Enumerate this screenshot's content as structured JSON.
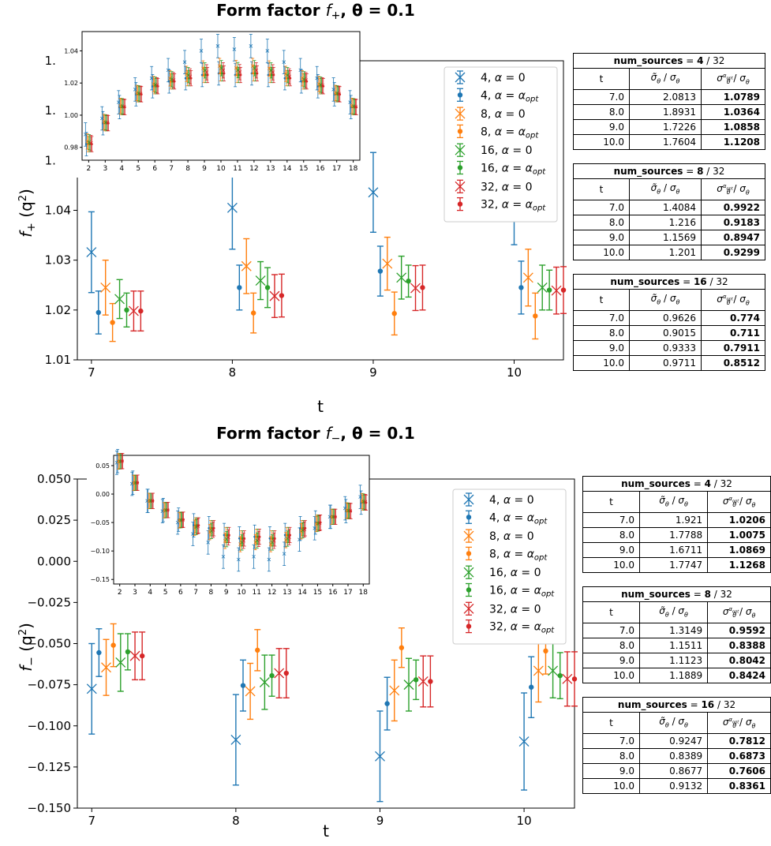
{
  "colors": {
    "n4": "#1f77b4",
    "n8": "#ff7f0e",
    "n16": "#2ca02c",
    "n32": "#d62728"
  },
  "legend": [
    {
      "n": "4",
      "alpha": "α = 0",
      "marker": "x",
      "color": "#1f77b4"
    },
    {
      "n": "4",
      "alpha": "α = α",
      "sub": "opt",
      "marker": "dot",
      "color": "#1f77b4"
    },
    {
      "n": "8",
      "alpha": "α = 0",
      "marker": "x",
      "color": "#ff7f0e"
    },
    {
      "n": "8",
      "alpha": "α = α",
      "sub": "opt",
      "marker": "dot",
      "color": "#ff7f0e"
    },
    {
      "n": "16",
      "alpha": "α = 0",
      "marker": "x",
      "color": "#2ca02c"
    },
    {
      "n": "16",
      "alpha": "α = α",
      "sub": "opt",
      "marker": "dot",
      "color": "#2ca02c"
    },
    {
      "n": "32",
      "alpha": "α = 0",
      "marker": "x",
      "color": "#d62728"
    },
    {
      "n": "32",
      "alpha": "α = α",
      "sub": "opt",
      "marker": "dot",
      "color": "#d62728"
    }
  ],
  "chart_data": [
    {
      "type": "scatter",
      "title_prefix": "Form factor ",
      "title_sym": "f",
      "title_sub": "+",
      "title_suffix": ",  θ = ",
      "title_val": "0.1",
      "xlabel": "t",
      "ylabel_f": "f",
      "ylabel_sub": "+",
      "ylabel_q": "(q",
      "ylabel_sup": "2",
      "ylabel_end": ")",
      "ylim": [
        1.01,
        1.07
      ],
      "xlim": [
        6.9,
        10.35
      ],
      "yticks": [
        1.01,
        1.02,
        1.03,
        1.04,
        1.05,
        1.06,
        1.07
      ],
      "ytick_labels": [
        "1.01",
        "1.02",
        "1.03",
        "1.04",
        "1.05",
        "1.06",
        "1.07"
      ],
      "xticks": [
        7,
        8,
        9,
        10
      ],
      "xtick_labels": [
        "7",
        "8",
        "9",
        "10"
      ],
      "series": [
        {
          "name": "4, α = 0",
          "color": "#1f77b4",
          "marker": "x",
          "offset": 0.0,
          "points": [
            [
              7,
              1.0316,
              0.0081
            ],
            [
              8,
              1.0405,
              0.0083
            ],
            [
              9,
              1.0436,
              0.008
            ],
            [
              10,
              1.0424,
              0.0093
            ]
          ]
        },
        {
          "name": "4, α = αopt",
          "color": "#1f77b4",
          "marker": "dot",
          "offset": 0.05,
          "points": [
            [
              7,
              1.0195,
              0.0043
            ],
            [
              8,
              1.0245,
              0.0045
            ],
            [
              9,
              1.0278,
              0.005
            ],
            [
              10,
              1.0245,
              0.0053
            ]
          ]
        },
        {
          "name": "8, α = 0",
          "color": "#ff7f0e",
          "marker": "x",
          "offset": 0.1,
          "points": [
            [
              7,
              1.0245,
              0.0055
            ],
            [
              8,
              1.0288,
              0.0055
            ],
            [
              9,
              1.0293,
              0.0053
            ],
            [
              10,
              1.0265,
              0.0057
            ]
          ]
        },
        {
          "name": "8, α = αopt",
          "color": "#ff7f0e",
          "marker": "dot",
          "offset": 0.15,
          "points": [
            [
              7,
              1.0175,
              0.0038
            ],
            [
              8,
              1.0194,
              0.004
            ],
            [
              9,
              1.0193,
              0.0043
            ],
            [
              10,
              1.0188,
              0.0046
            ]
          ]
        },
        {
          "name": "16, α = 0",
          "color": "#2ca02c",
          "marker": "x",
          "offset": 0.2,
          "points": [
            [
              7,
              1.0222,
              0.0039
            ],
            [
              8,
              1.0259,
              0.0038
            ],
            [
              9,
              1.0265,
              0.0043
            ],
            [
              10,
              1.0245,
              0.0045
            ]
          ]
        },
        {
          "name": "16, α = αopt",
          "color": "#2ca02c",
          "marker": "dot",
          "offset": 0.25,
          "points": [
            [
              7,
              1.02,
              0.0034
            ],
            [
              8,
              1.0245,
              0.004
            ],
            [
              9,
              1.0258,
              0.0032
            ],
            [
              10,
              1.024,
              0.004
            ]
          ]
        },
        {
          "name": "32, α = 0",
          "color": "#d62728",
          "marker": "x",
          "offset": 0.3,
          "points": [
            [
              7,
              1.0198,
              0.004
            ],
            [
              8,
              1.0228,
              0.0043
            ],
            [
              9,
              1.0244,
              0.0045
            ],
            [
              10,
              1.0239,
              0.0047
            ]
          ]
        },
        {
          "name": "32, α = αopt",
          "color": "#d62728",
          "marker": "dot",
          "offset": 0.35,
          "points": [
            [
              7,
              1.0198,
              0.004
            ],
            [
              8,
              1.0229,
              0.0043
            ],
            [
              9,
              1.0245,
              0.0045
            ],
            [
              10,
              1.024,
              0.0047
            ]
          ]
        }
      ],
      "inset": {
        "xlim": [
          1.6,
          18.4
        ],
        "ylim": [
          0.972,
          1.052
        ],
        "yticks": [
          0.98,
          1.0,
          1.02,
          1.04
        ],
        "ytick_labels": [
          "0.98",
          "1.00",
          "1.02",
          "1.04"
        ],
        "xticks": [
          2,
          3,
          4,
          5,
          6,
          7,
          8,
          9,
          10,
          11,
          12,
          13,
          14,
          15,
          16,
          17,
          18
        ],
        "xtick_labels": [
          "2",
          "3",
          "4",
          "5",
          "6",
          "7",
          "8",
          "9",
          "10",
          "11",
          "12",
          "13",
          "14",
          "15",
          "16",
          "17",
          "18"
        ],
        "x0_values": [
          0.988,
          0.998,
          1.008,
          1.016,
          1.023,
          1.028,
          1.033,
          1.04,
          1.043,
          1.041,
          1.043,
          1.04,
          1.033,
          1.028,
          1.023,
          1.016,
          1.008,
          0.998,
          0.988
        ],
        "opt_values": [
          0.982,
          0.995,
          1.005,
          1.013,
          1.018,
          1.021,
          1.023,
          1.025,
          1.026,
          1.025,
          1.026,
          1.025,
          1.023,
          1.021,
          1.018,
          1.013,
          1.005,
          0.995,
          0.982
        ]
      }
    },
    {
      "type": "scatter",
      "title_prefix": "Form factor ",
      "title_sym": "f",
      "title_sub": "−",
      "title_suffix": ",  θ = ",
      "title_val": "0.1",
      "xlabel": "t",
      "ylabel_f": "f",
      "ylabel_sub": "−",
      "ylabel_q": "(q",
      "ylabel_sup": "2",
      "ylabel_end": ")",
      "ylim": [
        -0.15,
        0.05
      ],
      "xlim": [
        6.9,
        10.35
      ],
      "yticks": [
        -0.15,
        -0.125,
        -0.1,
        -0.075,
        -0.05,
        -0.025,
        0.0,
        0.025,
        0.05
      ],
      "ytick_labels": [
        "−0.150",
        "−0.125",
        "−0.100",
        "−0.075",
        "−0.050",
        "−0.025",
        "0.000",
        "0.025",
        "0.050"
      ],
      "xticks": [
        7,
        8,
        9,
        10
      ],
      "xtick_labels": [
        "7",
        "8",
        "9",
        "10"
      ],
      "series": [
        {
          "name": "4, α = 0",
          "color": "#1f77b4",
          "marker": "x",
          "offset": 0.0,
          "points": [
            [
              7,
              -0.0775,
              0.0275
            ],
            [
              8,
              -0.1085,
              0.0275
            ],
            [
              9,
              -0.1185,
              0.0275
            ],
            [
              10,
              -0.1095,
              0.0295
            ]
          ]
        },
        {
          "name": "4, α = αopt",
          "color": "#1f77b4",
          "marker": "dot",
          "offset": 0.05,
          "points": [
            [
              7,
              -0.0555,
              0.0145
            ],
            [
              8,
              -0.0755,
              0.0155
            ],
            [
              9,
              -0.0865,
              0.016
            ],
            [
              10,
              -0.0765,
              0.0185
            ]
          ]
        },
        {
          "name": "8, α = 0",
          "color": "#ff7f0e",
          "marker": "x",
          "offset": 0.1,
          "points": [
            [
              7,
              -0.0645,
              0.017
            ],
            [
              8,
              -0.079,
              0.017
            ],
            [
              9,
              -0.0785,
              0.0185
            ],
            [
              10,
              -0.0665,
              0.019
            ]
          ]
        },
        {
          "name": "8, α = αopt",
          "color": "#ff7f0e",
          "marker": "dot",
          "offset": 0.15,
          "points": [
            [
              7,
              -0.051,
              0.013
            ],
            [
              8,
              -0.054,
              0.0125
            ],
            [
              9,
              -0.0525,
              0.012
            ],
            [
              10,
              -0.0545,
              0.014
            ]
          ]
        },
        {
          "name": "16, α = 0",
          "color": "#2ca02c",
          "marker": "x",
          "offset": 0.2,
          "points": [
            [
              7,
              -0.0615,
              0.0175
            ],
            [
              8,
              -0.0735,
              0.0165
            ],
            [
              9,
              -0.075,
              0.016
            ],
            [
              10,
              -0.0665,
              0.0165
            ]
          ]
        },
        {
          "name": "16, α = αopt",
          "color": "#2ca02c",
          "marker": "dot",
          "offset": 0.25,
          "points": [
            [
              7,
              -0.055,
              0.011
            ],
            [
              8,
              -0.0695,
              0.0125
            ],
            [
              9,
              -0.072,
              0.012
            ],
            [
              10,
              -0.0695,
              0.014
            ]
          ]
        },
        {
          "name": "32, α = 0",
          "color": "#d62728",
          "marker": "x",
          "offset": 0.3,
          "points": [
            [
              7,
              -0.0575,
              0.0145
            ],
            [
              8,
              -0.068,
              0.015
            ],
            [
              9,
              -0.073,
              0.0155
            ],
            [
              10,
              -0.0715,
              0.0165
            ]
          ]
        },
        {
          "name": "32, α = αopt",
          "color": "#d62728",
          "marker": "dot",
          "offset": 0.35,
          "points": [
            [
              7,
              -0.0575,
              0.0145
            ],
            [
              8,
              -0.068,
              0.015
            ],
            [
              9,
              -0.073,
              0.0155
            ],
            [
              10,
              -0.0715,
              0.0165
            ]
          ]
        }
      ],
      "inset": {
        "xlim": [
          1.6,
          18.4
        ],
        "ylim": [
          -0.158,
          0.068
        ],
        "yticks": [
          -0.15,
          -0.1,
          -0.05,
          0.0,
          0.05
        ],
        "ytick_labels": [
          "−0.15",
          "−0.10",
          "−0.05",
          "0.00",
          "0.05"
        ],
        "xticks": [
          2,
          3,
          4,
          5,
          6,
          7,
          8,
          9,
          10,
          11,
          12,
          13,
          14,
          15,
          16,
          17,
          18
        ],
        "xtick_labels": [
          "2",
          "3",
          "4",
          "5",
          "6",
          "7",
          "8",
          "9",
          "10",
          "11",
          "12",
          "13",
          "14",
          "15",
          "16",
          "17",
          "18"
        ],
        "x0_values": [
          0.055,
          0.018,
          -0.012,
          -0.03,
          -0.05,
          -0.07,
          -0.085,
          -0.11,
          -0.115,
          -0.11,
          -0.115,
          -0.105,
          -0.08,
          -0.06,
          -0.04,
          -0.025,
          -0.005,
          0.02,
          0.055
        ],
        "opt_values": [
          0.058,
          0.02,
          -0.012,
          -0.028,
          -0.045,
          -0.055,
          -0.06,
          -0.072,
          -0.078,
          -0.075,
          -0.078,
          -0.072,
          -0.06,
          -0.05,
          -0.04,
          -0.03,
          -0.015,
          0.022,
          0.058
        ]
      }
    }
  ],
  "tables_top": [
    {
      "label": "num_sources",
      "eq": " = ",
      "n": "4",
      "total": " / 32",
      "col_t": "t",
      "col_a": "σ̃",
      "col_a2": "θ",
      "col_a3": " / σ",
      "col_a4": "θ",
      "col_b": "σ",
      "col_b_sup": "α",
      "col_b_sup2": "opt",
      "col_b2": "θ",
      "col_b3": " / σ",
      "col_b4": "θ",
      "rows": [
        [
          "7.0",
          "2.0813",
          "1.0789"
        ],
        [
          "8.0",
          "1.8931",
          "1.0364"
        ],
        [
          "9.0",
          "1.7226",
          "1.0858"
        ],
        [
          "10.0",
          "1.7604",
          "1.1208"
        ]
      ]
    },
    {
      "label": "num_sources",
      "eq": " = ",
      "n": "8",
      "total": " / 32",
      "col_t": "t",
      "col_a": "σ̃",
      "col_a2": "θ",
      "col_a3": " / σ",
      "col_a4": "θ",
      "col_b": "σ",
      "col_b_sup": "α",
      "col_b_sup2": "opt",
      "col_b2": "θ",
      "col_b3": " / σ",
      "col_b4": "θ",
      "rows": [
        [
          "7.0",
          "1.4084",
          "0.9922"
        ],
        [
          "8.0",
          "1.216",
          "0.9183"
        ],
        [
          "9.0",
          "1.1569",
          "0.8947"
        ],
        [
          "10.0",
          "1.201",
          "0.9299"
        ]
      ]
    },
    {
      "label": "num_sources",
      "eq": " = ",
      "n": "16",
      "total": " / 32",
      "col_t": "t",
      "col_a": "σ̃",
      "col_a2": "θ",
      "col_a3": " / σ",
      "col_a4": "θ",
      "col_b": "σ",
      "col_b_sup": "α",
      "col_b_sup2": "opt",
      "col_b2": "θ",
      "col_b3": " / σ",
      "col_b4": "θ",
      "rows": [
        [
          "7.0",
          "0.9626",
          "0.774"
        ],
        [
          "8.0",
          "0.9015",
          "0.711"
        ],
        [
          "9.0",
          "0.9333",
          "0.7911"
        ],
        [
          "10.0",
          "0.9711",
          "0.8512"
        ]
      ]
    }
  ],
  "tables_bottom": [
    {
      "label": "num_sources",
      "eq": " = ",
      "n": "4",
      "total": " / 32",
      "col_t": "t",
      "col_a": "σ̃",
      "col_a2": "θ",
      "col_a3": " / σ",
      "col_a4": "θ",
      "col_b": "σ",
      "col_b_sup": "α",
      "col_b_sup2": "opt",
      "col_b2": "θ",
      "col_b3": " / σ",
      "col_b4": "θ",
      "rows": [
        [
          "7.0",
          "1.921",
          "1.0206"
        ],
        [
          "8.0",
          "1.7788",
          "1.0075"
        ],
        [
          "9.0",
          "1.6711",
          "1.0869"
        ],
        [
          "10.0",
          "1.7747",
          "1.1268"
        ]
      ]
    },
    {
      "label": "num_sources",
      "eq": " = ",
      "n": "8",
      "total": " / 32",
      "col_t": "t",
      "col_a": "σ̃",
      "col_a2": "θ",
      "col_a3": " / σ",
      "col_a4": "θ",
      "col_b": "σ",
      "col_b_sup": "α",
      "col_b_sup2": "opt",
      "col_b2": "θ",
      "col_b3": " / σ",
      "col_b4": "θ",
      "rows": [
        [
          "7.0",
          "1.3149",
          "0.9592"
        ],
        [
          "8.0",
          "1.1511",
          "0.8388"
        ],
        [
          "9.0",
          "1.1123",
          "0.8042"
        ],
        [
          "10.0",
          "1.1889",
          "0.8424"
        ]
      ]
    },
    {
      "label": "num_sources",
      "eq": " = ",
      "n": "16",
      "total": " / 32",
      "col_t": "t",
      "col_a": "σ̃",
      "col_a2": "θ",
      "col_a3": " / σ",
      "col_a4": "θ",
      "col_b": "σ",
      "col_b_sup": "α",
      "col_b_sup2": "opt",
      "col_b2": "θ",
      "col_b3": " / σ",
      "col_b4": "θ",
      "rows": [
        [
          "7.0",
          "0.9247",
          "0.7812"
        ],
        [
          "8.0",
          "0.8389",
          "0.6873"
        ],
        [
          "9.0",
          "0.8677",
          "0.7606"
        ],
        [
          "10.0",
          "0.9132",
          "0.8361"
        ]
      ]
    }
  ]
}
